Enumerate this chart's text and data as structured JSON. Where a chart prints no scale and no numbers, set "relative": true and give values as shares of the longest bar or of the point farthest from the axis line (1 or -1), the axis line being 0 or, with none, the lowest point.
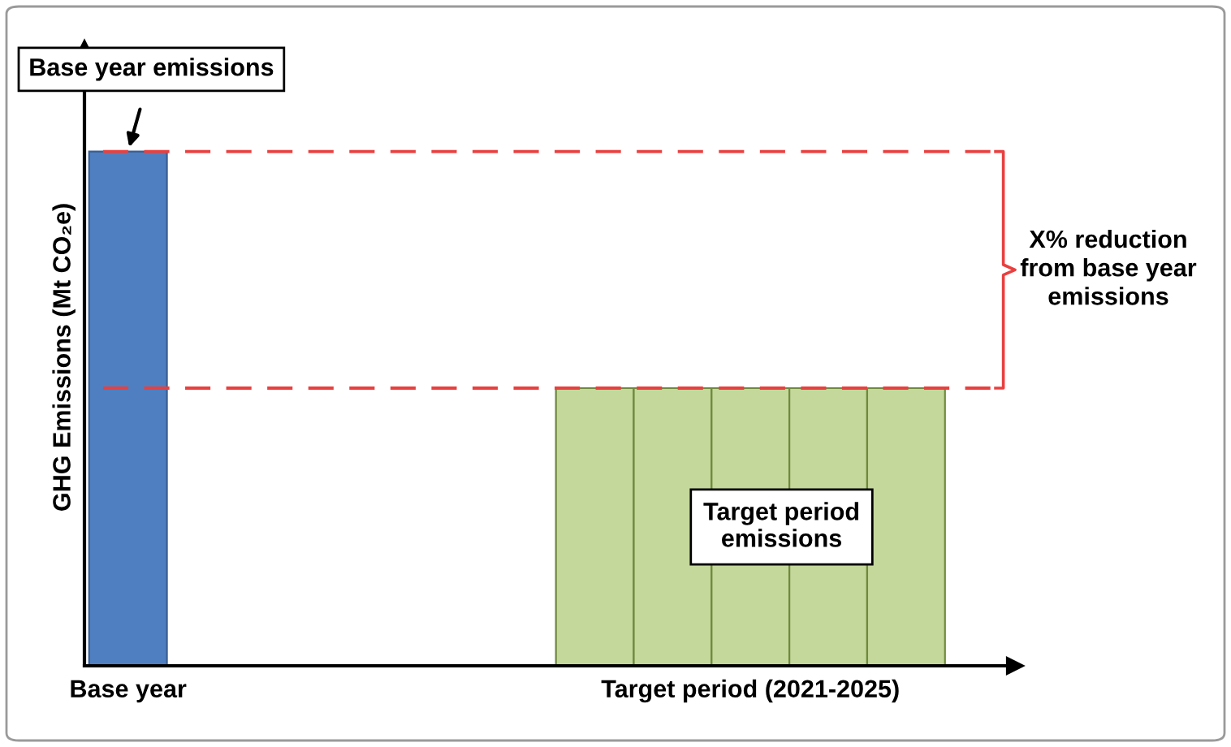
{
  "chart_data": {
    "type": "bar",
    "relative": true,
    "ylabel": "GHG Emissions (Mt CO₂e)",
    "categories": [
      "Base year",
      null,
      null,
      null,
      null,
      null,
      null,
      null,
      "Target period (2021-2025)",
      null,
      null
    ],
    "values": [
      1,
      null,
      null,
      null,
      null,
      null,
      0.54,
      0.54,
      0.54,
      0.54,
      0.54
    ],
    "colors": [
      "#4f7fc1",
      null,
      null,
      null,
      null,
      null,
      "#c4d89b",
      "#c4d89b",
      "#c4d89b",
      "#c4d89b",
      "#c4d89b"
    ],
    "ref_lines": [
      {
        "axis": "y",
        "value": 1,
        "label": null,
        "color": "#e8403f",
        "line_style": "dashed"
      },
      {
        "axis": "y",
        "value": 0.54,
        "label": null,
        "color": "#e8403f",
        "line_style": "dashed"
      }
    ],
    "annotations": [
      "Base year emissions",
      "X% reduction\nfrom base year\nemissions",
      "Target period\nemissions"
    ],
    "tick_labels": "x"
  }
}
